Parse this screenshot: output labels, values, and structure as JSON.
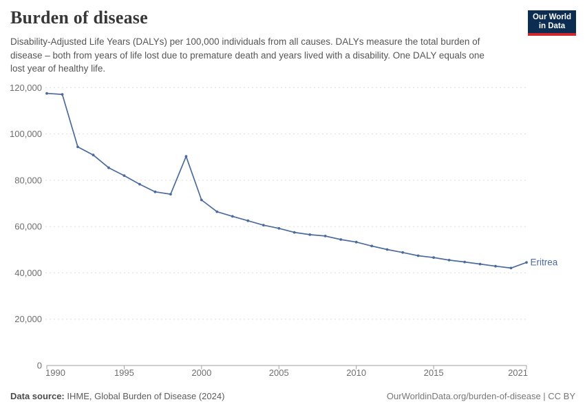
{
  "header": {
    "title": "Burden of disease",
    "subtitle": "Disability-Adjusted Life Years (DALYs) per 100,000 individuals from all causes. DALYs measure the total burden of disease – both from years of life lost due to premature death and years lived with a disability. One DALY equals one lost year of healthy life.",
    "logo": {
      "line1": "Our World",
      "line2": "in Data",
      "bg": "#0d2c51",
      "accent": "#d0262e"
    }
  },
  "chart_data": {
    "type": "line",
    "title": "Burden of disease",
    "subtitle": "Disability-Adjusted Life Years (DALYs) per 100,000 individuals from all causes.",
    "xlabel": "",
    "ylabel": "",
    "xlim": [
      1990,
      2021
    ],
    "ylim": [
      0,
      120000
    ],
    "grid": "horizontal-dashed",
    "legend_position": "end-of-line-label",
    "xticks": [
      1990,
      1995,
      2000,
      2005,
      2010,
      2015,
      2021
    ],
    "yticks": [
      0,
      20000,
      40000,
      60000,
      80000,
      100000,
      120000
    ],
    "ytick_labels": [
      "0",
      "20,000",
      "40,000",
      "60,000",
      "80,000",
      "100,000",
      "120,000"
    ],
    "series": [
      {
        "name": "Eritrea",
        "color": "#4c6a9c",
        "x": [
          1990,
          1991,
          1992,
          1993,
          1994,
          1995,
          1996,
          1997,
          1998,
          1999,
          2000,
          2001,
          2002,
          2003,
          2004,
          2005,
          2006,
          2007,
          2008,
          2009,
          2010,
          2011,
          2012,
          2013,
          2014,
          2015,
          2016,
          2017,
          2018,
          2019,
          2020,
          2021
        ],
        "values": [
          117500,
          117100,
          94400,
          90900,
          85400,
          82000,
          78300,
          75000,
          74000,
          90300,
          71500,
          66400,
          64400,
          62500,
          60600,
          59200,
          57500,
          56500,
          55900,
          54400,
          53300,
          51600,
          50100,
          48800,
          47400,
          46600,
          45500,
          44700,
          43800,
          42900,
          42100,
          44500
        ]
      }
    ],
    "end_label": "Eritrea"
  },
  "footer": {
    "source_label": "Data source:",
    "source_text": " IHME, Global Burden of Disease (2024)",
    "credit": "OurWorldinData.org/burden-of-disease | CC BY"
  },
  "colors": {
    "grid": "#dcdcdc",
    "axis": "#a1a1a1",
    "tick_text": "#6e6e6e",
    "line": "#4c6a9c"
  }
}
